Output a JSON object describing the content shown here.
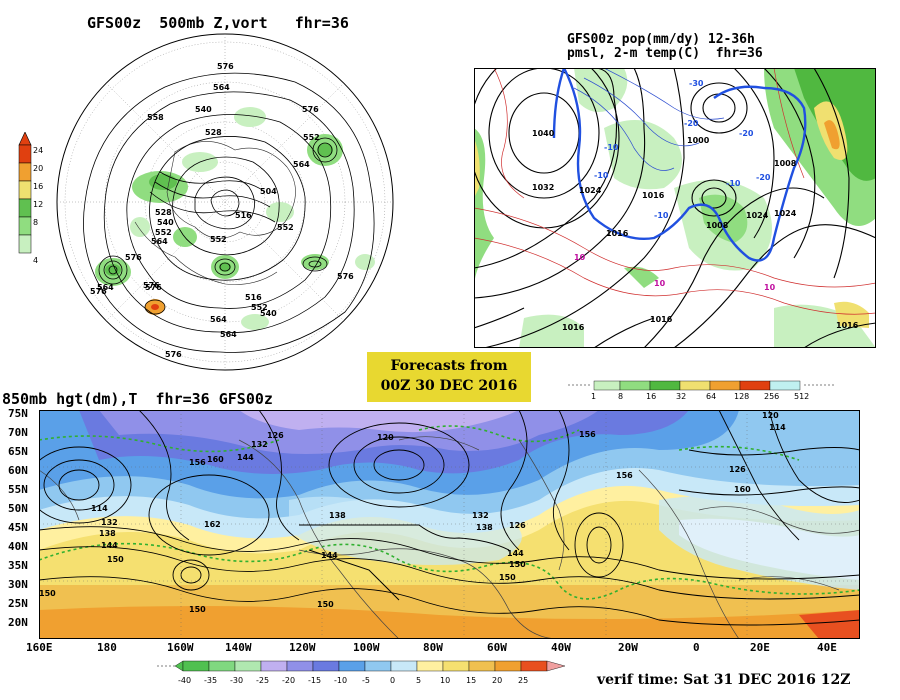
{
  "panels": {
    "vort": {
      "title": "GFS00z  500mb Z,vort   fhr=36",
      "colorbar_ticks": [
        "24",
        "20",
        "16",
        "12",
        "8",
        "4"
      ],
      "colorbar_colors": [
        "#e04010",
        "#f0a030",
        "#f0e070",
        "#60c050",
        "#90dd80",
        "#c8f0c0"
      ],
      "contours": [
        "576",
        "564",
        "540",
        "558",
        "528",
        "564",
        "552",
        "576",
        "504",
        "516",
        "528",
        "540",
        "552",
        "564",
        "576",
        "576",
        "564",
        "516",
        "552",
        "540",
        "564",
        "552",
        "552",
        "576",
        "576",
        "576",
        "564",
        "576"
      ]
    },
    "pop": {
      "title_line1": "GFS00z pop(mm/dy) 12-36h",
      "title_line2": "pmsl, 2-m temp(C)  fhr=36",
      "isobars": [
        "1040",
        "1032",
        "1024",
        "1016",
        "1008",
        "1000",
        "1024",
        "1008",
        "1016",
        "1016",
        "1016",
        "1016",
        "1024"
      ],
      "temps": [
        "-10",
        "-20",
        "-30",
        "-10",
        "-20",
        "-10",
        "-10",
        "-20",
        "10",
        "10",
        "10"
      ],
      "legend_ticks": [
        "1",
        "8",
        "16",
        "32",
        "64",
        "128",
        "256",
        "512"
      ],
      "legend_colors": [
        "#c8f0c0",
        "#90dd80",
        "#50b840",
        "#f0e070",
        "#f0a030",
        "#e04010",
        "#c0f0f0"
      ]
    },
    "banner": {
      "line1": "Forecasts from",
      "line2": "00Z 30 DEC 2016"
    },
    "hgt": {
      "title": "850mb hgt(dm),T  fhr=36 GFS00z",
      "lat_labels": [
        "75N",
        "70N",
        "65N",
        "60N",
        "55N",
        "50N",
        "45N",
        "40N",
        "35N",
        "30N",
        "25N",
        "20N"
      ],
      "lon_labels": [
        "160E",
        "180",
        "160W",
        "140W",
        "120W",
        "100W",
        "80W",
        "60W",
        "40W",
        "20W",
        "0",
        "20E",
        "40E"
      ],
      "contours": [
        "120",
        "132",
        "144",
        "156",
        "160",
        "114",
        "126",
        "132",
        "138",
        "144",
        "150",
        "162",
        "150",
        "150",
        "138",
        "144",
        "150",
        "156",
        "120",
        "114",
        "126",
        "126",
        "132",
        "138",
        "144",
        "150",
        "156",
        "160",
        "150"
      ],
      "temp_ticks": [
        "-40",
        "-35",
        "-30",
        "-25",
        "-20",
        "-15",
        "-10",
        "-5",
        "0",
        "5",
        "10",
        "15",
        "20",
        "25"
      ],
      "temp_colors": [
        "#50c050",
        "#80d880",
        "#b0e8b0",
        "#c0b0f0",
        "#9090e8",
        "#6a7ae0",
        "#5aa0e8",
        "#90c8f0",
        "#c8e8f8",
        "#fff0a0",
        "#f5e070",
        "#f0c050",
        "#f0a030",
        "#e85020"
      ],
      "verif_time": "verif time: Sat 31 DEC 2016 12Z"
    }
  }
}
